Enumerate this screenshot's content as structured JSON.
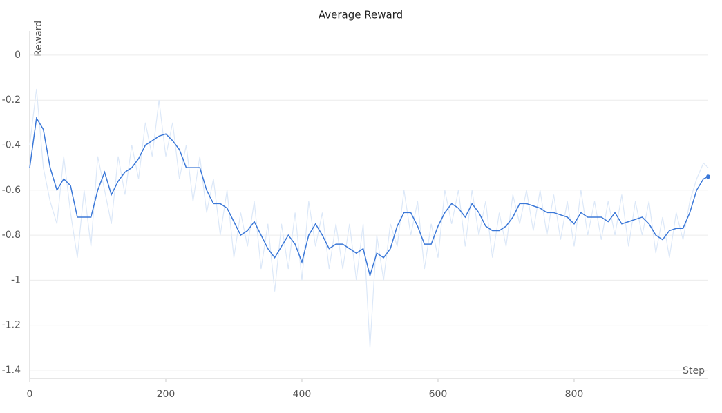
{
  "chart_data": {
    "type": "line",
    "title": "Average Reward",
    "x_label": "Step",
    "y_label": "Reward",
    "x": [
      0,
      10,
      20,
      30,
      40,
      50,
      60,
      70,
      80,
      90,
      100,
      110,
      120,
      130,
      140,
      150,
      160,
      170,
      180,
      190,
      200,
      210,
      220,
      230,
      240,
      250,
      260,
      270,
      280,
      290,
      300,
      310,
      320,
      330,
      340,
      350,
      360,
      370,
      380,
      390,
      400,
      410,
      420,
      430,
      440,
      450,
      460,
      470,
      480,
      490,
      500,
      510,
      520,
      530,
      540,
      550,
      560,
      570,
      580,
      590,
      600,
      610,
      620,
      630,
      640,
      650,
      660,
      670,
      680,
      690,
      700,
      710,
      720,
      730,
      740,
      750,
      760,
      770,
      780,
      790,
      800,
      810,
      820,
      830,
      840,
      850,
      860,
      870,
      880,
      890,
      900,
      910,
      920,
      930,
      940,
      950,
      960,
      970,
      980,
      990,
      997
    ],
    "series": [
      {
        "color": "#dce8f8",
        "values": [
          -0.4,
          -0.15,
          -0.5,
          -0.65,
          -0.75,
          -0.45,
          -0.7,
          -0.9,
          -0.6,
          -0.85,
          -0.45,
          -0.6,
          -0.75,
          -0.45,
          -0.62,
          -0.4,
          -0.55,
          -0.3,
          -0.45,
          -0.2,
          -0.45,
          -0.3,
          -0.55,
          -0.4,
          -0.65,
          -0.45,
          -0.7,
          -0.55,
          -0.8,
          -0.6,
          -0.9,
          -0.7,
          -0.85,
          -0.65,
          -0.95,
          -0.75,
          -1.05,
          -0.75,
          -0.95,
          -0.7,
          -1.0,
          -0.65,
          -0.85,
          -0.7,
          -0.95,
          -0.75,
          -0.95,
          -0.75,
          -1.0,
          -0.75,
          -1.3,
          -0.8,
          -1.0,
          -0.75,
          -0.85,
          -0.6,
          -0.8,
          -0.65,
          -0.95,
          -0.75,
          -0.9,
          -0.6,
          -0.75,
          -0.6,
          -0.85,
          -0.6,
          -0.8,
          -0.65,
          -0.9,
          -0.7,
          -0.85,
          -0.62,
          -0.75,
          -0.6,
          -0.78,
          -0.6,
          -0.8,
          -0.62,
          -0.82,
          -0.65,
          -0.85,
          -0.6,
          -0.8,
          -0.65,
          -0.82,
          -0.65,
          -0.8,
          -0.62,
          -0.85,
          -0.65,
          -0.8,
          -0.65,
          -0.88,
          -0.72,
          -0.9,
          -0.7,
          -0.82,
          -0.65,
          -0.55,
          -0.48,
          -0.5
        ]
      },
      {
        "color": "#3b78d8",
        "values": [
          -0.5,
          -0.28,
          -0.33,
          -0.5,
          -0.6,
          -0.55,
          -0.58,
          -0.72,
          -0.72,
          -0.72,
          -0.6,
          -0.52,
          -0.62,
          -0.56,
          -0.52,
          -0.5,
          -0.46,
          -0.4,
          -0.38,
          -0.36,
          -0.35,
          -0.38,
          -0.42,
          -0.5,
          -0.5,
          -0.5,
          -0.6,
          -0.66,
          -0.66,
          -0.68,
          -0.74,
          -0.8,
          -0.78,
          -0.74,
          -0.8,
          -0.86,
          -0.9,
          -0.85,
          -0.8,
          -0.84,
          -0.92,
          -0.8,
          -0.75,
          -0.8,
          -0.86,
          -0.84,
          -0.84,
          -0.86,
          -0.88,
          -0.86,
          -0.98,
          -0.88,
          -0.9,
          -0.86,
          -0.76,
          -0.7,
          -0.7,
          -0.76,
          -0.84,
          -0.84,
          -0.76,
          -0.7,
          -0.66,
          -0.68,
          -0.72,
          -0.66,
          -0.7,
          -0.76,
          -0.78,
          -0.78,
          -0.76,
          -0.72,
          -0.66,
          -0.66,
          -0.67,
          -0.68,
          -0.7,
          -0.7,
          -0.71,
          -0.72,
          -0.75,
          -0.7,
          -0.72,
          -0.72,
          -0.72,
          -0.74,
          -0.7,
          -0.75,
          -0.74,
          -0.73,
          -0.72,
          -0.75,
          -0.8,
          -0.82,
          -0.78,
          -0.77,
          -0.77,
          -0.7,
          -0.6,
          -0.55,
          -0.54
        ]
      }
    ],
    "xlim": [
      0,
      997
    ],
    "ylim": [
      -1.437,
      0.107
    ],
    "xticks": [
      0,
      200,
      400,
      600,
      800
    ],
    "yticks": [
      0,
      -0.2,
      -0.4,
      -0.6,
      -0.8,
      -1,
      -1.2,
      -1.4
    ],
    "grid": true
  }
}
